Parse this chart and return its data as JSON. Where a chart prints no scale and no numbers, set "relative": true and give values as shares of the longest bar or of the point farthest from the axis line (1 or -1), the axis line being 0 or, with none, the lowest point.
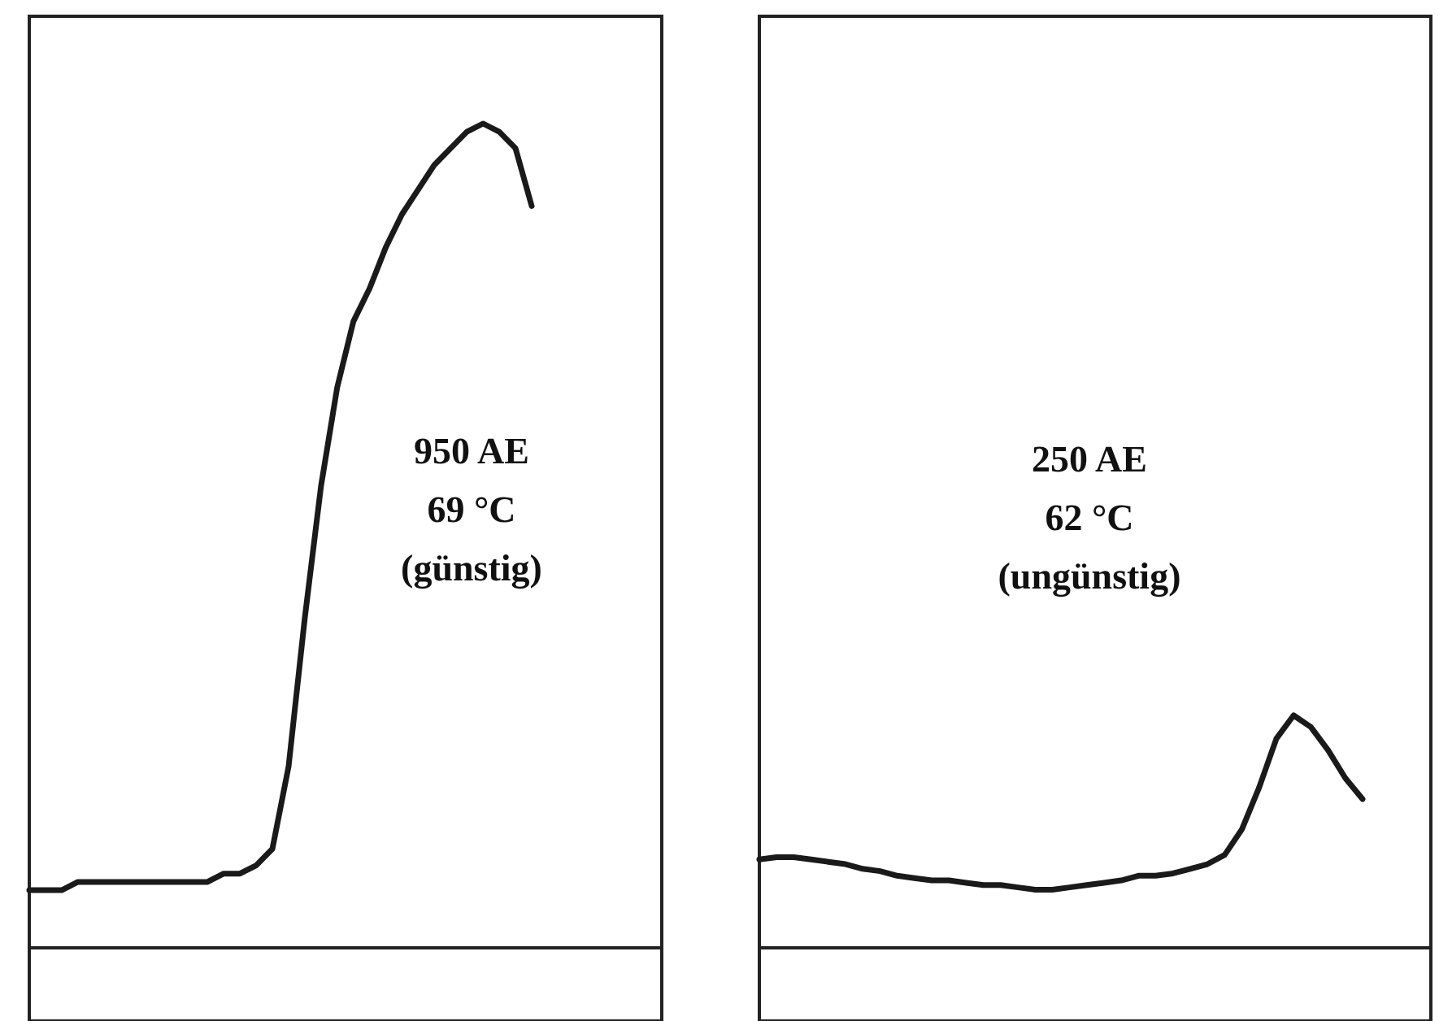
{
  "chart_data": [
    {
      "type": "line",
      "relative": true,
      "categories": [
        null,
        null,
        null,
        null,
        null,
        null,
        null,
        null,
        null,
        null,
        null,
        null,
        null,
        null,
        null,
        null,
        null,
        null,
        null,
        null,
        null,
        null,
        null,
        null,
        null,
        null,
        null,
        null,
        null,
        null,
        null,
        null
      ],
      "series": [
        {
          "color": "#1a1a1a",
          "values": [
            0.07,
            0.07,
            0.07,
            0.08,
            0.08,
            0.08,
            0.08,
            0.08,
            0.08,
            0.08,
            0.08,
            0.08,
            0.09,
            0.09,
            0.1,
            0.12,
            0.22,
            0.4,
            0.56,
            0.68,
            0.76,
            0.8,
            0.85,
            0.89,
            0.92,
            0.95,
            0.97,
            0.99,
            1,
            0.99,
            0.97,
            0.9
          ]
        }
      ],
      "annotations": [
        "950 AE",
        "69 °C",
        "(günstig)"
      ]
    },
    {
      "type": "line",
      "relative": true,
      "categories": [
        null,
        null,
        null,
        null,
        null,
        null,
        null,
        null,
        null,
        null,
        null,
        null,
        null,
        null,
        null,
        null,
        null,
        null,
        null,
        null,
        null,
        null,
        null,
        null,
        null,
        null,
        null,
        null,
        null,
        null,
        null,
        null,
        null,
        null,
        null,
        null
      ],
      "series": [
        {
          "color": "#1a1a1a",
          "values": [
            0.38,
            0.39,
            0.39,
            0.38,
            0.37,
            0.36,
            0.34,
            0.33,
            0.31,
            0.3,
            0.29,
            0.29,
            0.28,
            0.27,
            0.27,
            0.26,
            0.25,
            0.25,
            0.26,
            0.27,
            0.28,
            0.29,
            0.31,
            0.31,
            0.32,
            0.34,
            0.36,
            0.4,
            0.51,
            0.69,
            0.9,
            1,
            0.95,
            0.85,
            0.73,
            0.64
          ]
        }
      ],
      "annotations": [
        "250 AE",
        "62 °C",
        "(ungünstig)"
      ]
    }
  ]
}
